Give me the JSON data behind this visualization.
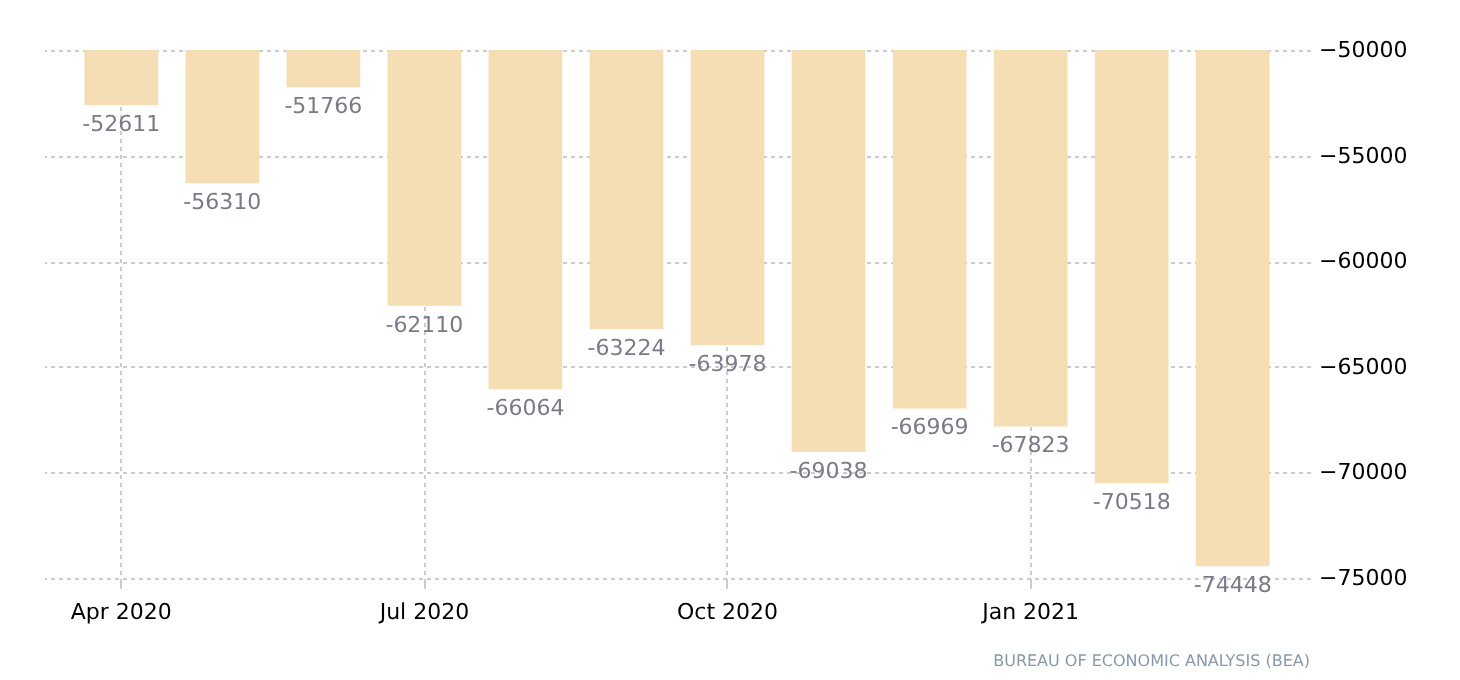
{
  "chart_data": {
    "type": "bar",
    "categories": [
      "Apr 2020",
      null,
      null,
      "Jul 2020",
      null,
      null,
      "Oct 2020",
      null,
      null,
      "Jan 2021",
      null,
      null
    ],
    "values": [
      -52611,
      -56310,
      -51766,
      -62110,
      -66064,
      -63224,
      -63978,
      -69038,
      -66969,
      -67823,
      -70518,
      -74448
    ],
    "color": "#f5deb3",
    "ylim": [
      -75000,
      -50000
    ],
    "yticks": [
      -75000,
      -70000,
      -65000,
      -60000,
      -55000,
      -50000
    ],
    "grid": true,
    "data_labels": true,
    "annotations": [
      "BUREAU OF ECONOMIC ANALYSIS (BEA)"
    ]
  }
}
